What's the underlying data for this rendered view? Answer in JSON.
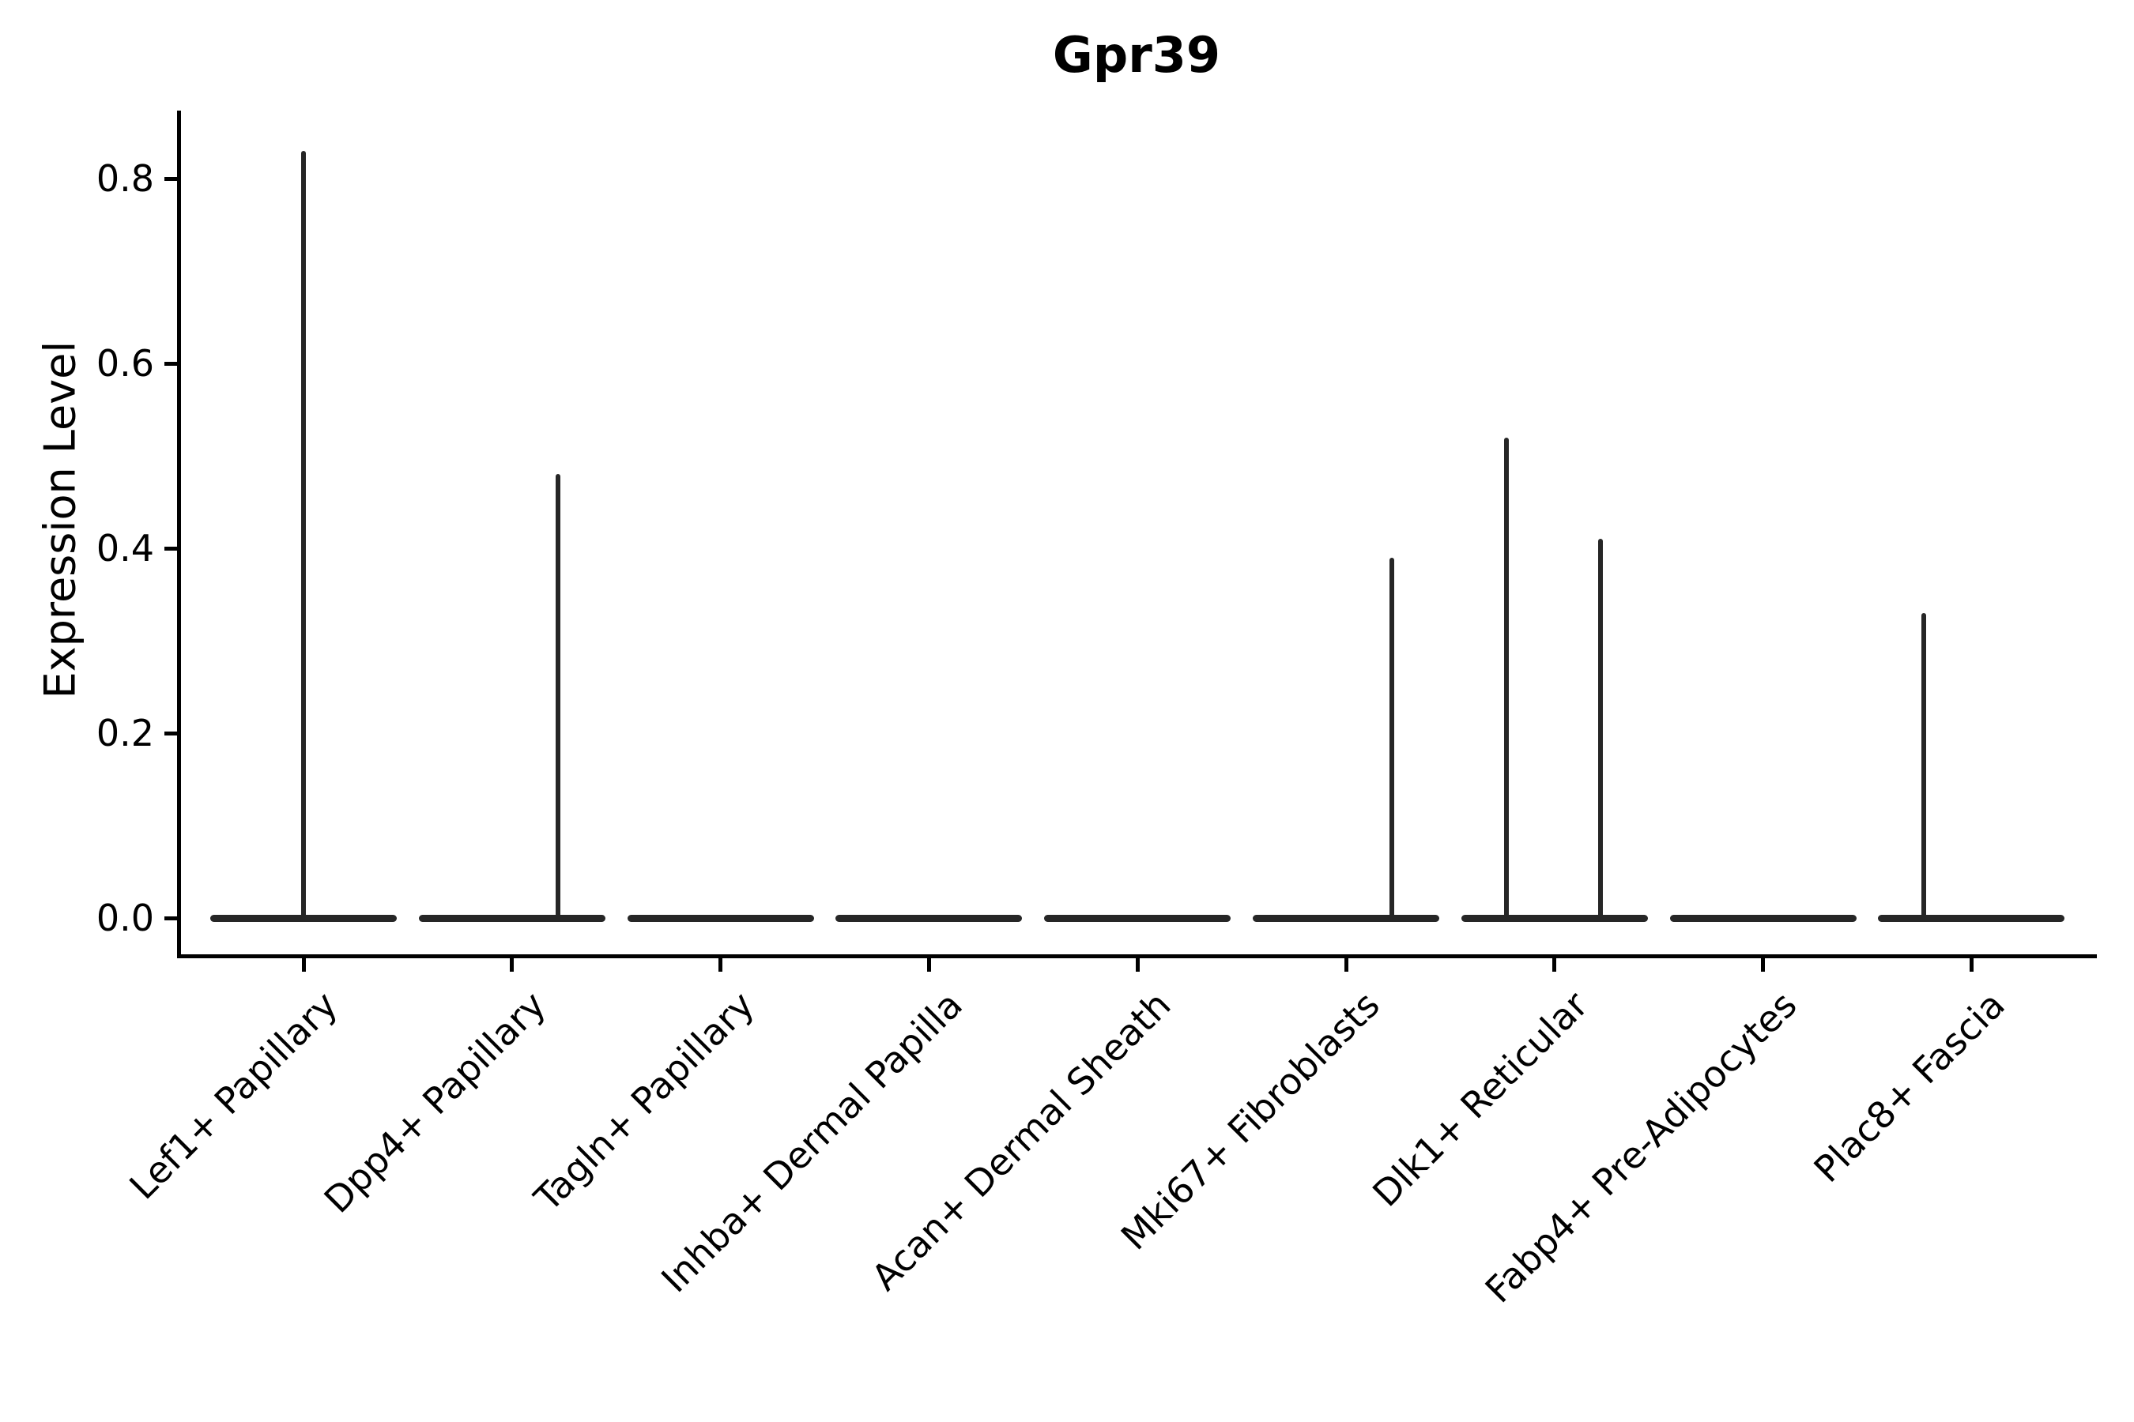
{
  "title": "Gpr39",
  "axes": {
    "y_label": "Expression Level",
    "y_tick_labels": [
      "0.0",
      "0.2",
      "0.4",
      "0.6",
      "0.8"
    ],
    "x_tick_labels": [
      "Lef1+ Papillary",
      "Dpp4+ Papillary",
      "Tagln+ Papillary",
      "Inhba+ Dermal Papilla",
      "Acan+ Dermal Sheath",
      "Mki67+ Fibroblasts",
      "Dlk1+ Reticular",
      "Fabp4+ Pre-Adipocytes",
      "Plac8+ Fascia"
    ]
  },
  "colors": {
    "violin_line": "#262626",
    "spine": "#000000",
    "text": "#000000",
    "background": "#ffffff"
  },
  "chart_data": {
    "type": "violin",
    "title": "Gpr39",
    "xlabel": "",
    "ylabel": "Expression Level",
    "ylim": [
      -0.04,
      0.87
    ],
    "y_ticks": [
      0.0,
      0.2,
      0.4,
      0.6,
      0.8
    ],
    "grid": false,
    "legend": "none",
    "categories": [
      "Lef1+ Papillary",
      "Dpp4+ Papillary",
      "Tagln+ Papillary",
      "Inhba+ Dermal Papilla",
      "Acan+ Dermal Sheath",
      "Mki67+ Fibroblasts",
      "Dlk1+ Reticular",
      "Fabp4+ Pre-Adipocytes",
      "Plac8+ Fascia"
    ],
    "max_expression": [
      0.83,
      0.48,
      0.0,
      0.0,
      0.0,
      0.39,
      0.52,
      0.0,
      0.33
    ],
    "note": "All nine violins are flattened at expression level 0 (bulk of cells express nothing); thin vertical density tails rise from the baseline where rare cells express Gpr39.",
    "spikes": [
      {
        "category_index": 0,
        "category": "Lef1+ Papillary",
        "value": 0.83,
        "offset_frac": 0.0
      },
      {
        "category_index": 1,
        "category": "Dpp4+ Papillary",
        "value": 0.48,
        "offset_frac": 0.22
      },
      {
        "category_index": 5,
        "category": "Mki67+ Fibroblasts",
        "value": 0.39,
        "offset_frac": 0.22
      },
      {
        "category_index": 6,
        "category": "Dlk1+ Reticular",
        "value": 0.52,
        "offset_frac": -0.23
      },
      {
        "category_index": 6,
        "category": "Dlk1+ Reticular",
        "value": 0.41,
        "offset_frac": 0.22
      },
      {
        "category_index": 8,
        "category": "Plac8+ Fascia",
        "value": 0.33,
        "offset_frac": -0.23
      }
    ]
  }
}
